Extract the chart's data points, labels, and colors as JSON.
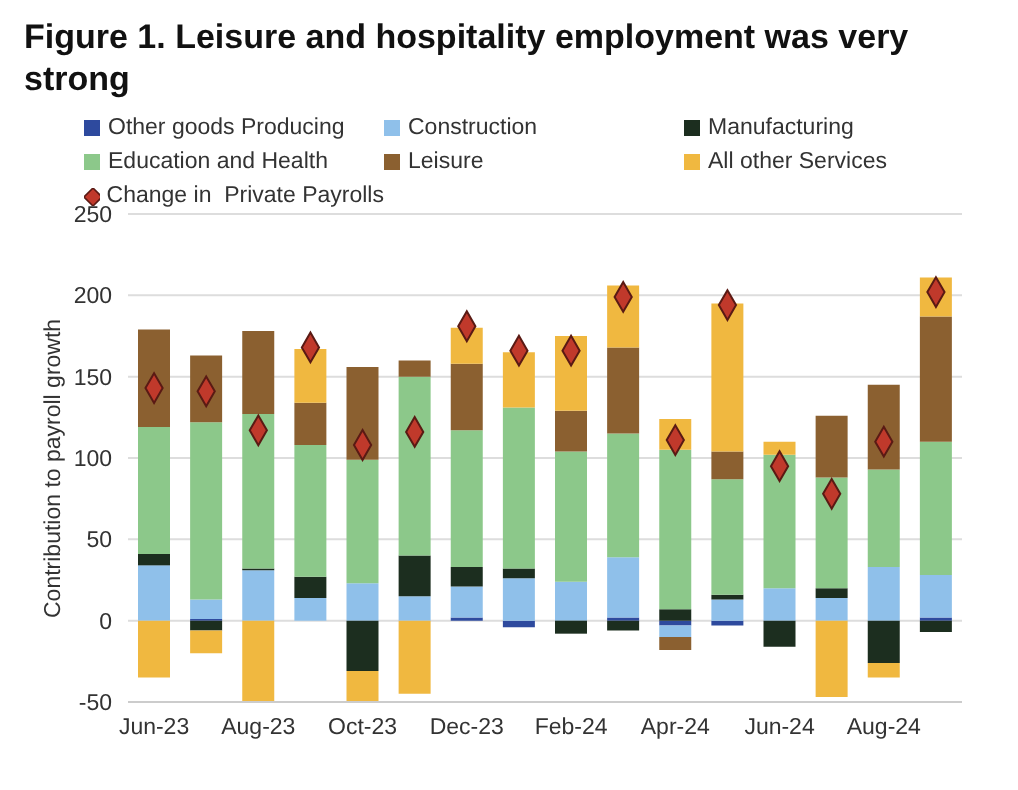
{
  "chart_data": {
    "type": "bar",
    "title": "Figure 1. Leisure and hospitality employment was very strong",
    "ylabel": "Contribution to payroll growth",
    "categories": [
      "Jun-23",
      null,
      "Aug-23",
      null,
      "Oct-23",
      null,
      "Dec-23",
      null,
      "Feb-24",
      null,
      "Apr-24",
      null,
      "Jun-24",
      null,
      "Aug-24",
      null
    ],
    "stacked": true,
    "ylim": [
      -50,
      250
    ],
    "yticks": [
      -50,
      0,
      50,
      100,
      150,
      200,
      250
    ],
    "grid": "y",
    "legend": "top",
    "series": [
      {
        "name": "Other goods Producing",
        "color": "#2e4a9e",
        "values": [
          0,
          1,
          0,
          0,
          0,
          0,
          2,
          -4,
          0,
          2,
          -3,
          -3,
          0,
          0,
          0,
          2
        ]
      },
      {
        "name": "Construction",
        "color": "#8fc0ea",
        "values": [
          34,
          12,
          31,
          14,
          23,
          15,
          19,
          26,
          24,
          37,
          -7,
          13,
          20,
          14,
          33,
          26
        ]
      },
      {
        "name": "Manufacturing",
        "color": "#1c2e1f",
        "values": [
          7,
          -6,
          1,
          13,
          -31,
          25,
          12,
          6,
          -8,
          -6,
          7,
          3,
          -16,
          6,
          -26,
          -7
        ]
      },
      {
        "name": "Education and Health",
        "color": "#8cc88a",
        "values": [
          78,
          109,
          95,
          81,
          76,
          110,
          84,
          99,
          80,
          76,
          98,
          71,
          82,
          68,
          60,
          82
        ]
      },
      {
        "name": "Leisure",
        "color": "#8b6030",
        "values": [
          60,
          41,
          51,
          26,
          57,
          10,
          41,
          0,
          25,
          53,
          -8,
          17,
          0,
          38,
          52,
          77
        ]
      },
      {
        "name": "All other Services",
        "color": "#f0b840",
        "values": [
          -35,
          -14,
          -50,
          33,
          -19,
          -45,
          22,
          34,
          46,
          38,
          19,
          91,
          8,
          -47,
          -9,
          24
        ]
      },
      {
        "name": "Change in  Private Payrolls",
        "type": "scatter",
        "marker": "diamond",
        "color": "#c0392b",
        "values": [
          143,
          141,
          117,
          168,
          108,
          116,
          181,
          166,
          166,
          199,
          111,
          194,
          95,
          78,
          110,
          202
        ]
      }
    ]
  }
}
